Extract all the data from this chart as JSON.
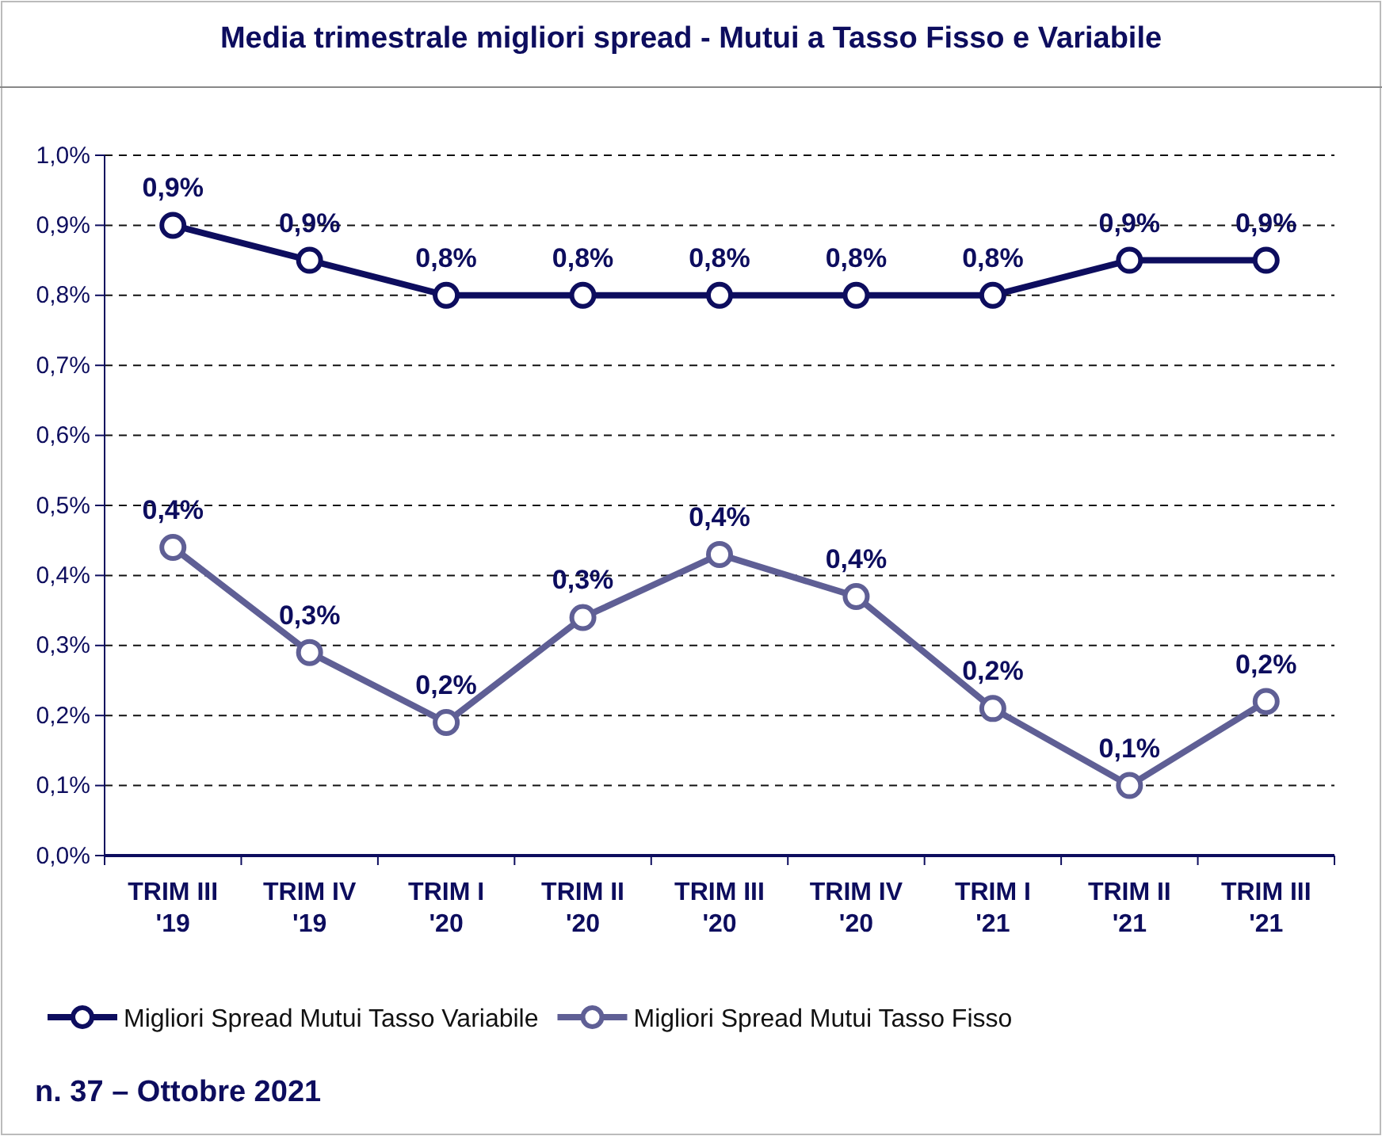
{
  "chart_data": {
    "type": "line",
    "title": "Media trimestrale migliori spread - Mutui a Tasso Fisso e Variabile",
    "categories": [
      "TRIM III\n'19",
      "TRIM IV\n'19",
      "TRIM I\n'20",
      "TRIM II\n'20",
      "TRIM III\n'20",
      "TRIM IV\n'20",
      "TRIM I\n'21",
      "TRIM II\n'21",
      "TRIM III\n'21"
    ],
    "series": [
      {
        "name": "Migliori Spread Mutui Tasso Variabile",
        "color": "#0d0d5e",
        "values": [
          0.9,
          0.85,
          0.8,
          0.8,
          0.8,
          0.8,
          0.8,
          0.85,
          0.85
        ],
        "value_labels": [
          "0,9%",
          "0,9%",
          "0,8%",
          "0,8%",
          "0,8%",
          "0,8%",
          "0,8%",
          "0,9%",
          "0,9%"
        ]
      },
      {
        "name": "Migliori Spread Mutui Tasso Fisso",
        "color": "#5f5f95",
        "values": [
          0.44,
          0.29,
          0.19,
          0.34,
          0.43,
          0.37,
          0.21,
          0.1,
          0.22
        ],
        "value_labels": [
          "0,4%",
          "0,3%",
          "0,2%",
          "0,3%",
          "0,4%",
          "0,4%",
          "0,2%",
          "0,1%",
          "0,2%"
        ]
      }
    ],
    "ylim": [
      0,
      1
    ],
    "yticks": [
      {
        "value": 0,
        "label": "0,0%"
      },
      {
        "value": 0.1,
        "label": "0,1%"
      },
      {
        "value": 0.2,
        "label": "0,2%"
      },
      {
        "value": 0.3,
        "label": "0,3%"
      },
      {
        "value": 0.4,
        "label": "0,4%"
      },
      {
        "value": 0.5,
        "label": "0,5%"
      },
      {
        "value": 0.6,
        "label": "0,6%"
      },
      {
        "value": 0.7,
        "label": "0,7%"
      },
      {
        "value": 0.8,
        "label": "0,8%"
      },
      {
        "value": 0.9,
        "label": "0,9%"
      },
      {
        "value": 1,
        "label": "1,0%"
      }
    ],
    "grid": "y",
    "legend": "bottom",
    "marker": "circle",
    "line_style": "solid",
    "annotations": [
      "n. 37 – Ottobre 2021"
    ]
  }
}
